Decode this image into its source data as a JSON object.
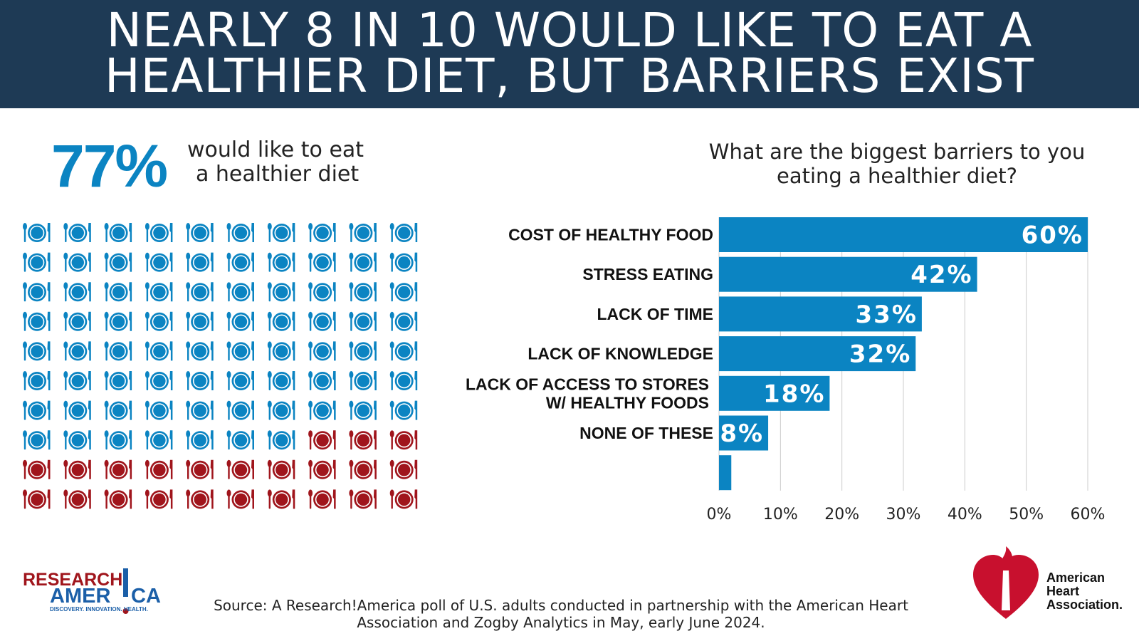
{
  "header": {
    "line1": "NEARLY 8 IN 10 WOULD LIKE TO EAT A",
    "line2": "HEALTHIER DIET, BUT BARRIERS EXIST"
  },
  "stat": {
    "value": "77%",
    "text_line1": "would like to eat",
    "text_line2": "a healthier diet",
    "icons_total": 100,
    "icons_highlight": 77,
    "icon_name": "plate-fork-knife-icon"
  },
  "question": {
    "line1": "What are the biggest barriers to you",
    "line2": "eating a healthier diet?"
  },
  "colors": {
    "header_bg": "#1e3a55",
    "accent_blue": "#0b84c2",
    "accent_red": "#a0151c",
    "bar": "#0b84c2"
  },
  "chart_data": {
    "type": "bar",
    "orientation": "horizontal",
    "categories": [
      "COST OF HEALTHY FOOD",
      "STRESS EATING",
      "LACK OF TIME",
      "LACK OF KNOWLEDGE",
      "LACK OF ACCESS TO STORES W/ HEALTHY FOODS",
      "NONE OF THESE",
      ""
    ],
    "category_lines": [
      [
        "COST OF HEALTHY FOOD"
      ],
      [
        "STRESS EATING"
      ],
      [
        "LACK OF TIME"
      ],
      [
        "LACK OF KNOWLEDGE"
      ],
      [
        "LACK OF ACCESS TO STORES",
        "W/ HEALTHY FOODS"
      ],
      [
        "NONE OF THESE"
      ],
      []
    ],
    "values": [
      60,
      42,
      33,
      32,
      18,
      8,
      2
    ],
    "data_labels": [
      "60%",
      "42%",
      "33%",
      "32%",
      "18%",
      "8%",
      ""
    ],
    "xlim": [
      0,
      60
    ],
    "xticks": [
      0,
      10,
      20,
      30,
      40,
      50,
      60
    ],
    "xtick_labels": [
      "0%",
      "10%",
      "20%",
      "30%",
      "40%",
      "50%",
      "60%"
    ],
    "grid": "vertical"
  },
  "source": {
    "line1": "Source:  A Research!America poll of U.S. adults conducted in partnership with the American Heart",
    "line2": "Association and Zogby Analytics in May, early June 2024."
  },
  "logos": {
    "research_america": {
      "top": "RESEARCH",
      "bottom_left": "AMER",
      "bottom_right": "CA",
      "tagline": "DISCOVERY. INNOVATION. HEALTH."
    },
    "aha": {
      "line1": "American",
      "line2": "Heart",
      "line3": "Association."
    }
  }
}
